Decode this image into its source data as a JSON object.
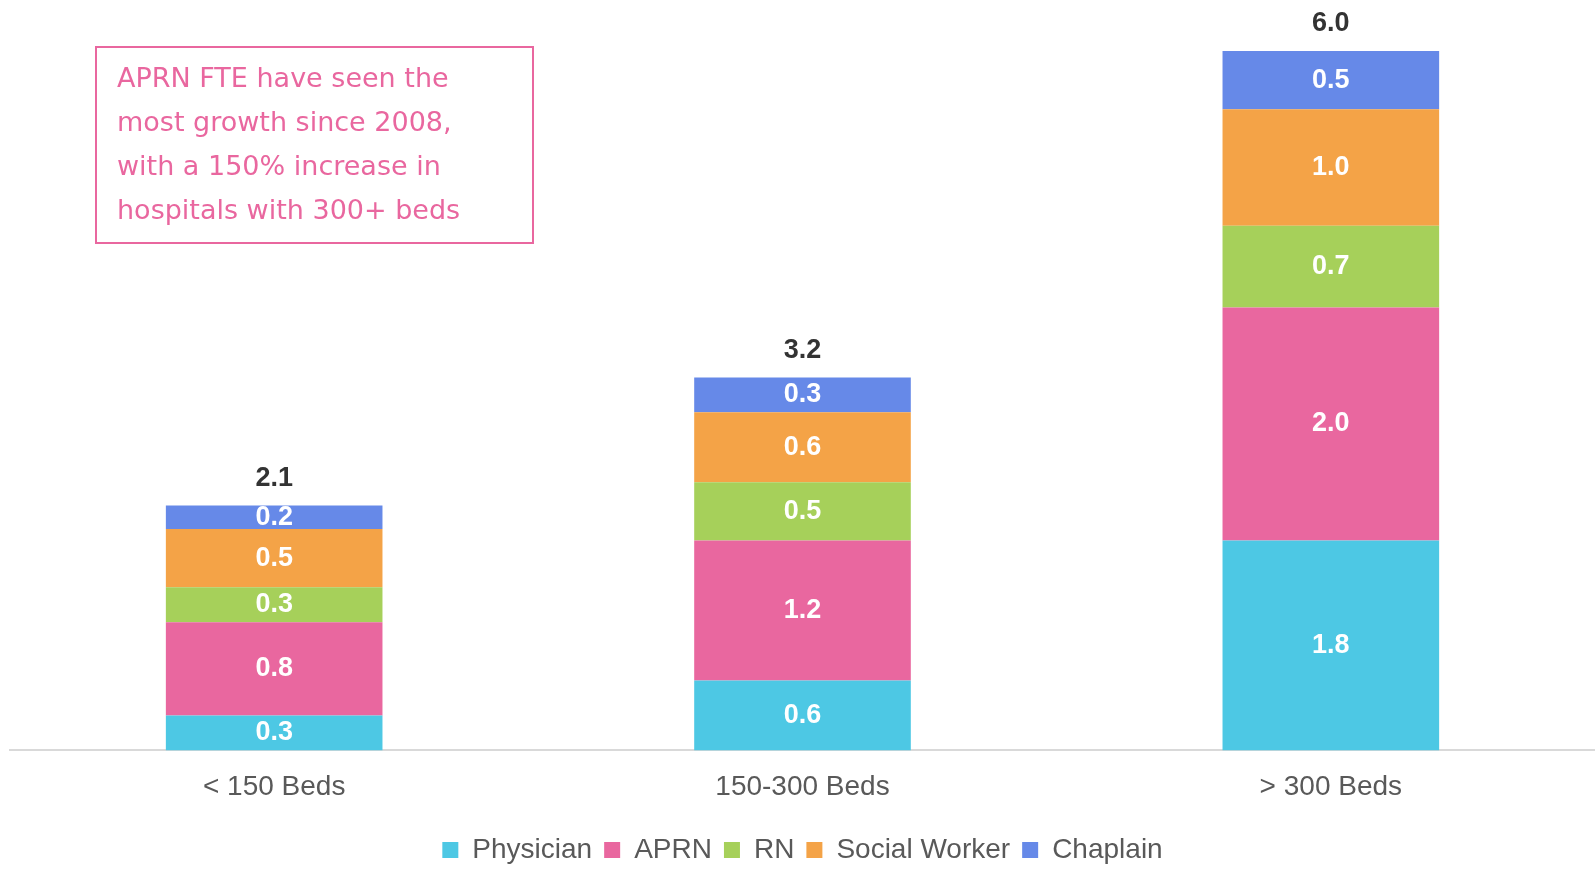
{
  "chart_data": {
    "type": "bar",
    "stacked": true,
    "categories": [
      "< 150 Beds",
      "150-300 Beds",
      "> 300 Beds"
    ],
    "series": [
      {
        "name": "Physician",
        "color": "#4dc8e4",
        "values": [
          0.3,
          0.6,
          1.8
        ],
        "value_labels": [
          "0.3",
          "0.6",
          "1.8"
        ]
      },
      {
        "name": "APRN",
        "color": "#e9679f",
        "values": [
          0.8,
          1.2,
          2.0
        ],
        "value_labels": [
          "0.8",
          "1.2",
          "2.0"
        ]
      },
      {
        "name": "RN",
        "color": "#a6d05a",
        "values": [
          0.3,
          0.5,
          0.7
        ],
        "value_labels": [
          "0.3",
          "0.5",
          "0.7"
        ]
      },
      {
        "name": "Social Worker",
        "color": "#f4a347",
        "values": [
          0.5,
          0.6,
          1.0
        ],
        "value_labels": [
          "0.5",
          "0.6",
          "1.0"
        ]
      },
      {
        "name": "Chaplain",
        "color": "#6689e8",
        "values": [
          0.2,
          0.3,
          0.5
        ],
        "value_labels": [
          "0.2",
          "0.3",
          "0.5"
        ]
      }
    ],
    "totals": [
      "2.1",
      "3.2",
      "6.0"
    ],
    "legend": "bottom",
    "grid": false,
    "annotations": [
      "APRN FTE have seen the most growth since 2008, with a 150% increase in hospitals with 300+ beds"
    ]
  }
}
